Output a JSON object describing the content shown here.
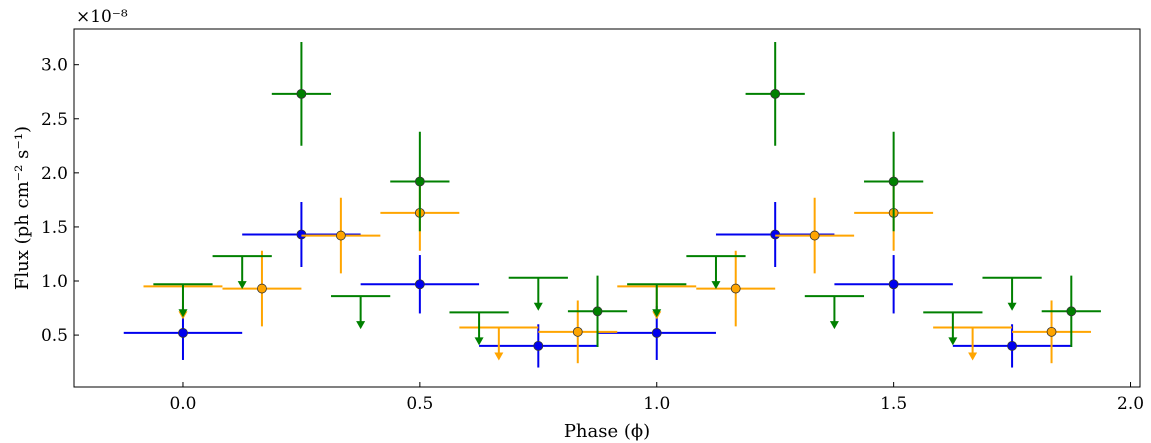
{
  "chart_data": {
    "type": "scatter",
    "title": "",
    "xlabel": "Phase (ϕ)",
    "ylabel": "Flux (ph cm⁻² s⁻¹)",
    "y_multiplier": "×10⁻⁸",
    "xlim": [
      -0.23,
      2.02
    ],
    "ylim": [
      0.02,
      3.33
    ],
    "x_ticks": [
      0.0,
      0.5,
      1.0,
      1.5,
      2.0
    ],
    "x_tick_labels": [
      "0.0",
      "0.5",
      "1.0",
      "1.5",
      "2.0"
    ],
    "y_ticks": [
      0.5,
      1.0,
      1.5,
      2.0,
      2.5,
      3.0
    ],
    "y_tick_labels": [
      "0.5",
      "1.0",
      "1.5",
      "2.0",
      "2.5",
      "3.0"
    ],
    "grid": false,
    "series": [
      {
        "name": "blue",
        "color": "#0000ee",
        "points": [
          {
            "x": 0.0,
            "xerr": 0.125,
            "y": 0.52,
            "yerr_lo": 0.25,
            "yerr_hi": 0.25
          },
          {
            "x": 0.25,
            "xerr": 0.125,
            "y": 1.43,
            "yerr_lo": 0.3,
            "yerr_hi": 0.3
          },
          {
            "x": 0.5,
            "xerr": 0.125,
            "y": 0.97,
            "yerr_lo": 0.27,
            "yerr_hi": 0.27
          },
          {
            "x": 0.75,
            "xerr": 0.125,
            "y": 0.4,
            "yerr_lo": 0.2,
            "yerr_hi": 0.2
          },
          {
            "x": 1.0,
            "xerr": 0.125,
            "y": 0.52,
            "yerr_lo": 0.25,
            "yerr_hi": 0.25
          },
          {
            "x": 1.25,
            "xerr": 0.125,
            "y": 1.43,
            "yerr_lo": 0.3,
            "yerr_hi": 0.3
          },
          {
            "x": 1.5,
            "xerr": 0.125,
            "y": 0.97,
            "yerr_lo": 0.27,
            "yerr_hi": 0.27
          },
          {
            "x": 1.75,
            "xerr": 0.125,
            "y": 0.4,
            "yerr_lo": 0.2,
            "yerr_hi": 0.2
          }
        ],
        "upper_limits": []
      },
      {
        "name": "orange",
        "color": "#ffa500",
        "points": [
          {
            "x": 0.1667,
            "xerr": 0.0833,
            "y": 0.93,
            "yerr_lo": 0.35,
            "yerr_hi": 0.35
          },
          {
            "x": 0.3333,
            "xerr": 0.0833,
            "y": 1.42,
            "yerr_lo": 0.35,
            "yerr_hi": 0.35
          },
          {
            "x": 0.5,
            "xerr": 0.0833,
            "y": 1.63,
            "yerr_lo": 0.35,
            "yerr_hi": 0.35
          },
          {
            "x": 0.8333,
            "xerr": 0.0833,
            "y": 0.53,
            "yerr_lo": 0.29,
            "yerr_hi": 0.29
          },
          {
            "x": 1.1667,
            "xerr": 0.0833,
            "y": 0.93,
            "yerr_lo": 0.35,
            "yerr_hi": 0.35
          },
          {
            "x": 1.3333,
            "xerr": 0.0833,
            "y": 1.42,
            "yerr_lo": 0.35,
            "yerr_hi": 0.35
          },
          {
            "x": 1.5,
            "xerr": 0.0833,
            "y": 1.63,
            "yerr_lo": 0.35,
            "yerr_hi": 0.35
          },
          {
            "x": 1.8333,
            "xerr": 0.0833,
            "y": 0.53,
            "yerr_lo": 0.29,
            "yerr_hi": 0.29
          }
        ],
        "upper_limits": [
          {
            "x": 0.0,
            "xerr": 0.0833,
            "y": 0.95
          },
          {
            "x": 0.6667,
            "xerr": 0.0833,
            "y": 0.57
          },
          {
            "x": 1.0,
            "xerr": 0.0833,
            "y": 0.95
          },
          {
            "x": 1.6667,
            "xerr": 0.0833,
            "y": 0.57
          }
        ]
      },
      {
        "name": "green",
        "color": "#008000",
        "points": [
          {
            "x": 0.25,
            "xerr": 0.0625,
            "y": 2.73,
            "yerr_lo": 0.48,
            "yerr_hi": 0.48
          },
          {
            "x": 0.5,
            "xerr": 0.0625,
            "y": 1.92,
            "yerr_lo": 0.46,
            "yerr_hi": 0.46
          },
          {
            "x": 0.875,
            "xerr": 0.0625,
            "y": 0.72,
            "yerr_lo": 0.33,
            "yerr_hi": 0.33
          },
          {
            "x": 1.25,
            "xerr": 0.0625,
            "y": 2.73,
            "yerr_lo": 0.48,
            "yerr_hi": 0.48
          },
          {
            "x": 1.5,
            "xerr": 0.0625,
            "y": 1.92,
            "yerr_lo": 0.46,
            "yerr_hi": 0.46
          },
          {
            "x": 1.875,
            "xerr": 0.0625,
            "y": 0.72,
            "yerr_lo": 0.33,
            "yerr_hi": 0.33
          }
        ],
        "upper_limits": [
          {
            "x": 0.0,
            "xerr": 0.0625,
            "y": 0.97
          },
          {
            "x": 0.125,
            "xerr": 0.0625,
            "y": 1.23
          },
          {
            "x": 0.375,
            "xerr": 0.0625,
            "y": 0.86
          },
          {
            "x": 0.625,
            "xerr": 0.0625,
            "y": 0.71
          },
          {
            "x": 0.75,
            "xerr": 0.0625,
            "y": 1.03
          },
          {
            "x": 1.0,
            "xerr": 0.0625,
            "y": 0.97
          },
          {
            "x": 1.125,
            "xerr": 0.0625,
            "y": 1.23
          },
          {
            "x": 1.375,
            "xerr": 0.0625,
            "y": 0.86
          },
          {
            "x": 1.625,
            "xerr": 0.0625,
            "y": 0.71
          },
          {
            "x": 1.75,
            "xerr": 0.0625,
            "y": 1.03
          }
        ]
      }
    ]
  }
}
